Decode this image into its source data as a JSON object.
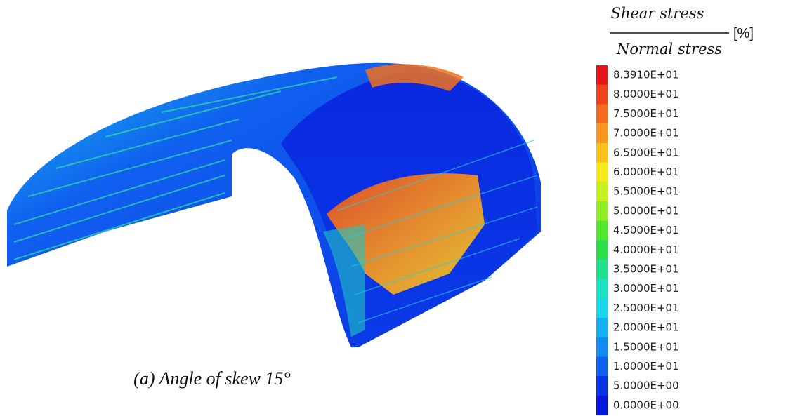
{
  "legend": {
    "numerator": "Shear stress",
    "denominator": "Normal stress",
    "unit": "[%]",
    "entries": [
      {
        "label": "8.3910E+01",
        "color": "#e8141a"
      },
      {
        "label": "8.0000E+01",
        "color": "#f0401c"
      },
      {
        "label": "7.5000E+01",
        "color": "#f46a1e"
      },
      {
        "label": "7.0000E+01",
        "color": "#f8961e"
      },
      {
        "label": "6.5000E+01",
        "color": "#fcc01c"
      },
      {
        "label": "6.0000E+01",
        "color": "#f6ea1a"
      },
      {
        "label": "5.5000E+01",
        "color": "#c6f01e"
      },
      {
        "label": "5.0000E+01",
        "color": "#8ef024"
      },
      {
        "label": "4.5000E+01",
        "color": "#50e82a"
      },
      {
        "label": "4.0000E+01",
        "color": "#2ae046"
      },
      {
        "label": "3.5000E+01",
        "color": "#22e08a"
      },
      {
        "label": "3.0000E+01",
        "color": "#1ee0c2"
      },
      {
        "label": "2.5000E+01",
        "color": "#1ad6ec"
      },
      {
        "label": "2.0000E+01",
        "color": "#14b2f4"
      },
      {
        "label": "1.5000E+01",
        "color": "#108af4"
      },
      {
        "label": "1.0000E+01",
        "color": "#0c60f0"
      },
      {
        "label": "5.0000E+00",
        "color": "#0834e8"
      },
      {
        "label": "0.0000E+00",
        "color": "#0418e0"
      }
    ]
  },
  "caption": "(a) Angle of skew 15°"
}
